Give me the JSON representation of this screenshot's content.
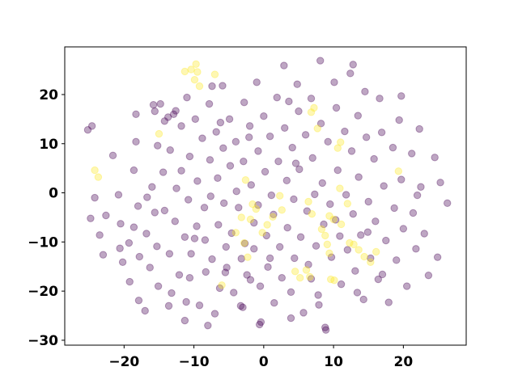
{
  "chart_data": {
    "type": "scatter",
    "title": "",
    "xlabel": "",
    "ylabel": "",
    "xlim": [
      -28.5,
      29.0
    ],
    "ylim": [
      -31.0,
      29.7
    ],
    "x_ticks": [
      -20,
      -10,
      0,
      10,
      20
    ],
    "y_ticks": [
      -30,
      -20,
      -10,
      0,
      10,
      20
    ],
    "grid": false,
    "legend": "none",
    "colors": {
      "class_0": "#440154",
      "class_1": "#fde725"
    },
    "marker_opacity": 0.35,
    "series": [
      {
        "class": 0,
        "points": [
          [
            -25.2,
            12.8
          ],
          [
            -24.6,
            13.6
          ],
          [
            -24.8,
            -5.2
          ],
          [
            -24.2,
            -1.0
          ],
          [
            -23.5,
            -8.6
          ],
          [
            -23.0,
            -12.6
          ],
          [
            -21.6,
            7.6
          ],
          [
            -20.8,
            -0.4
          ],
          [
            -20.5,
            -6.3
          ],
          [
            -20.6,
            -11.3
          ],
          [
            -19.3,
            -10.2
          ],
          [
            -19.2,
            -18.1
          ],
          [
            -18.6,
            4.6
          ],
          [
            -18.3,
            10.4
          ],
          [
            -18.0,
            -2.7
          ],
          [
            -18.6,
            -7.0
          ],
          [
            -17.8,
            -13.0
          ],
          [
            -17.9,
            -21.9
          ],
          [
            -16.7,
            -0.9
          ],
          [
            -16.8,
            -8.3
          ],
          [
            -16.3,
            -15.2
          ],
          [
            -16.0,
            1.2
          ],
          [
            -15.8,
            17.9
          ],
          [
            -15.6,
            16.6
          ],
          [
            -15.2,
            9.6
          ],
          [
            -15.6,
            -4.0
          ],
          [
            -15.3,
            -10.9
          ],
          [
            -15.1,
            -19.0
          ],
          [
            -14.4,
            4.2
          ],
          [
            -14.2,
            -3.6
          ],
          [
            -13.7,
            15.4
          ],
          [
            -13.4,
            8.7
          ],
          [
            -13.5,
            -12.4
          ],
          [
            -13.2,
            -20.4
          ],
          [
            -12.6,
            16.7
          ],
          [
            -12.5,
            0.9
          ],
          [
            -12.7,
            -5.8
          ],
          [
            -12.1,
            -16.7
          ],
          [
            -11.8,
            13.6
          ],
          [
            -11.8,
            4.5
          ],
          [
            -11.3,
            -9.0
          ],
          [
            -11.1,
            -22.2
          ],
          [
            -10.6,
            7.4
          ],
          [
            -10.8,
            -1.4
          ],
          [
            -10.4,
            -12.4
          ],
          [
            -10.6,
            -17.3
          ],
          [
            -9.8,
            15.0
          ],
          [
            -9.5,
            2.4
          ],
          [
            -9.6,
            -6.8
          ],
          [
            -9.2,
            -22.9
          ],
          [
            -8.8,
            11.1
          ],
          [
            -8.5,
            -3.0
          ],
          [
            -8.4,
            -9.6
          ],
          [
            -8.3,
            -16.1
          ],
          [
            -7.8,
            18.1
          ],
          [
            -7.7,
            6.7
          ],
          [
            -7.6,
            -0.7
          ],
          [
            -7.4,
            -13.5
          ],
          [
            -7.0,
            -24.6
          ],
          [
            -6.8,
            12.4
          ],
          [
            -6.6,
            3.0
          ],
          [
            -6.5,
            -6.5
          ],
          [
            -6.3,
            -19.4
          ],
          [
            -5.9,
            21.8
          ],
          [
            -5.8,
            9.1
          ],
          [
            -5.7,
            -2.1
          ],
          [
            -5.4,
            -11.0
          ],
          [
            -5.3,
            -15.2
          ],
          [
            -4.9,
            15.0
          ],
          [
            -4.8,
            5.5
          ],
          [
            -4.6,
            -8.2
          ],
          [
            -4.3,
            -20.3
          ],
          [
            -4.0,
            10.4
          ],
          [
            -3.9,
            0.3
          ],
          [
            -3.6,
            -3.0
          ],
          [
            -3.2,
            -13.4
          ],
          [
            -3.0,
            -23.3
          ],
          [
            -2.8,
            18.4
          ],
          [
            -2.9,
            6.4
          ],
          [
            -2.7,
            -10.3
          ],
          [
            -2.4,
            -16.7
          ],
          [
            -2.0,
            13.6
          ],
          [
            -1.8,
            1.6
          ],
          [
            -1.4,
            -6.1
          ],
          [
            -1.4,
            -11.4
          ],
          [
            -1.0,
            22.5
          ],
          [
            -0.8,
            8.5
          ],
          [
            -0.8,
            -2.5
          ],
          [
            -0.5,
            -19.0
          ],
          [
            -0.4,
            -26.3
          ],
          [
            0.0,
            15.6
          ],
          [
            0.2,
            4.3
          ],
          [
            0.4,
            -8.7
          ],
          [
            0.6,
            -15.1
          ],
          [
            0.9,
            11.5
          ],
          [
            1.1,
            -0.5
          ],
          [
            1.4,
            -4.4
          ],
          [
            1.5,
            -22.4
          ],
          [
            1.9,
            19.4
          ],
          [
            2.1,
            6.4
          ],
          [
            2.3,
            -11.0
          ],
          [
            2.6,
            -17.3
          ],
          [
            2.9,
            25.9
          ],
          [
            3.0,
            13.2
          ],
          [
            3.3,
            2.5
          ],
          [
            3.4,
            -7.1
          ],
          [
            3.9,
            -20.2
          ],
          [
            4.1,
            9.2
          ],
          [
            4.3,
            -1.3
          ],
          [
            4.4,
            -13.3
          ],
          [
            4.8,
            22.1
          ],
          [
            5.0,
            16.6
          ],
          [
            5.1,
            4.8
          ],
          [
            5.3,
            -9.0
          ],
          [
            5.7,
            -24.4
          ],
          [
            6.0,
            11.8
          ],
          [
            6.2,
            -3.7
          ],
          [
            6.4,
            -14.6
          ],
          [
            6.8,
            19.2
          ],
          [
            7.0,
            7.1
          ],
          [
            7.3,
            -0.3
          ],
          [
            7.5,
            -10.8
          ],
          [
            7.8,
            -20.8
          ],
          [
            8.1,
            26.9
          ],
          [
            8.2,
            14.1
          ],
          [
            8.4,
            2.0
          ],
          [
            8.6,
            -6.4
          ],
          [
            8.8,
            -27.4
          ],
          [
            9.2,
            10.4
          ],
          [
            9.5,
            -2.3
          ],
          [
            9.7,
            -13.1
          ],
          [
            10.1,
            22.5
          ],
          [
            10.4,
            17.3
          ],
          [
            10.6,
            4.6
          ],
          [
            10.9,
            -8.8
          ],
          [
            11.1,
            -18.6
          ],
          [
            11.6,
            12.5
          ],
          [
            11.8,
            -0.4
          ],
          [
            12.0,
            -11.6
          ],
          [
            12.4,
            24.3
          ],
          [
            12.6,
            8.5
          ],
          [
            12.8,
            -4.3
          ],
          [
            13.1,
            -15.9
          ],
          [
            13.5,
            15.7
          ],
          [
            13.6,
            3.2
          ],
          [
            13.9,
            -8.6
          ],
          [
            14.3,
            -21.7
          ],
          [
            14.5,
            20.6
          ],
          [
            14.7,
            11.3
          ],
          [
            15.0,
            -1.8
          ],
          [
            15.3,
            -13.3
          ],
          [
            15.8,
            6.9
          ],
          [
            16.0,
            -5.8
          ],
          [
            16.4,
            -17.6
          ],
          [
            16.6,
            19.2
          ],
          [
            16.9,
            12.3
          ],
          [
            17.2,
            1.4
          ],
          [
            17.5,
            -9.7
          ],
          [
            17.9,
            -22.3
          ],
          [
            18.5,
            9.2
          ],
          [
            18.7,
            -3.1
          ],
          [
            19.0,
            -13.7
          ],
          [
            19.4,
            14.8
          ],
          [
            19.7,
            2.7
          ],
          [
            20.0,
            -7.3
          ],
          [
            20.5,
            -19.0
          ],
          [
            21.2,
            8.0
          ],
          [
            21.4,
            -4.1
          ],
          [
            21.8,
            -11.4
          ],
          [
            22.3,
            13.0
          ],
          [
            22.5,
            1.2
          ],
          [
            23.0,
            -8.3
          ],
          [
            23.6,
            -16.8
          ],
          [
            24.5,
            7.2
          ],
          [
            24.9,
            -13.1
          ],
          [
            25.3,
            2.1
          ],
          [
            26.3,
            -2.1
          ],
          [
            -14.8,
            18.1
          ],
          [
            -12.9,
            16.0
          ],
          [
            -11.0,
            19.4
          ],
          [
            -14.2,
            14.6
          ],
          [
            -3.3,
            -23.0
          ],
          [
            -0.6,
            -26.8
          ],
          [
            8.9,
            -27.9
          ],
          [
            -22.6,
            -4.6
          ],
          [
            -17.0,
            -24.0
          ],
          [
            -8.0,
            -27.0
          ],
          [
            3.9,
            -25.5
          ],
          [
            12.8,
            26.1
          ],
          [
            19.7,
            19.7
          ],
          [
            -6.2,
            14.3
          ],
          [
            -1.9,
            -17.7
          ],
          [
            6.8,
            -17.5
          ],
          [
            14.9,
            -8.0
          ],
          [
            0.9,
            -13.3
          ],
          [
            -9.9,
            -9.3
          ],
          [
            4.6,
            6.0
          ],
          [
            -5.5,
            -16.2
          ],
          [
            10.3,
            -5.5
          ],
          [
            -2.1,
            11.3
          ],
          [
            7.9,
            -22.8
          ],
          [
            -20.2,
            -14.1
          ],
          [
            17.0,
            -16.6
          ],
          [
            -13.6,
            -23.0
          ],
          [
            22.0,
            -0.5
          ],
          [
            -7.4,
            21.7
          ],
          [
            3.6,
            18.6
          ],
          [
            13.4,
            -20.3
          ],
          [
            -18.3,
            16.0
          ],
          [
            -11.3,
            -26.0
          ]
        ]
      },
      {
        "class": 1,
        "points": [
          [
            -24.2,
            4.6
          ],
          [
            -23.7,
            3.2
          ],
          [
            -15.0,
            12.0
          ],
          [
            -11.3,
            24.7
          ],
          [
            -10.4,
            25.1
          ],
          [
            -9.7,
            26.2
          ],
          [
            -9.5,
            24.6
          ],
          [
            -9.9,
            23.0
          ],
          [
            -9.2,
            21.7
          ],
          [
            -7.0,
            24.1
          ],
          [
            -6.0,
            -18.8
          ],
          [
            -4.0,
            -8.1
          ],
          [
            -3.2,
            -5.0
          ],
          [
            -2.8,
            -10.2
          ],
          [
            -2.3,
            -13.1
          ],
          [
            -1.9,
            -5.4
          ],
          [
            -1.1,
            -3.3
          ],
          [
            -0.2,
            -8.1
          ],
          [
            0.5,
            -6.5
          ],
          [
            1.3,
            -4.9
          ],
          [
            2.3,
            -0.6
          ],
          [
            2.6,
            -3.5
          ],
          [
            -2.6,
            2.6
          ],
          [
            -1.6,
            -2.3
          ],
          [
            6.4,
            -1.8
          ],
          [
            6.9,
            -4.3
          ],
          [
            4.5,
            -16.0
          ],
          [
            5.2,
            -17.3
          ],
          [
            6.1,
            -15.7
          ],
          [
            6.6,
            -17.1
          ],
          [
            6.8,
            16.4
          ],
          [
            7.2,
            17.3
          ],
          [
            7.7,
            13.1
          ],
          [
            8.3,
            -7.4
          ],
          [
            8.8,
            -8.7
          ],
          [
            9.1,
            -10.5
          ],
          [
            9.4,
            -12.3
          ],
          [
            9.6,
            -17.6
          ],
          [
            10.1,
            -17.8
          ],
          [
            10.0,
            -5.4
          ],
          [
            10.6,
            9.1
          ],
          [
            11.0,
            10.3
          ],
          [
            11.1,
            -6.4
          ],
          [
            12.0,
            -2.2
          ],
          [
            12.3,
            -10.2
          ],
          [
            12.9,
            -10.5
          ],
          [
            13.6,
            -11.6
          ],
          [
            14.4,
            -13.0
          ],
          [
            15.3,
            -14.1
          ],
          [
            16.1,
            -12.0
          ],
          [
            19.3,
            4.4
          ],
          [
            10.9,
            0.9
          ],
          [
            9.4,
            -4.7
          ]
        ]
      }
    ]
  }
}
